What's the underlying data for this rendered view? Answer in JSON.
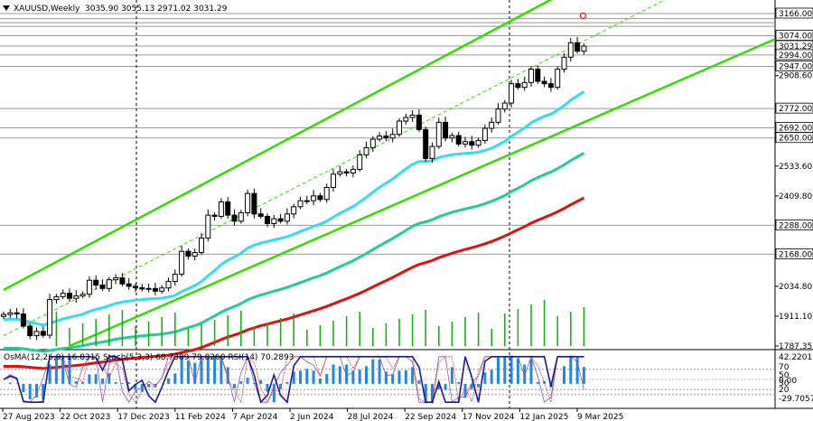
{
  "header": {
    "symbol": "XAUUSD,Weekly",
    "ohlc": "3035.90 3055.13 2971.02 3031.29"
  },
  "indicator": {
    "label": "OsMA(12,26,9) 16.8315  Stoch(5,3,3) 68.7389 79.8260  RSI(14) 70.2893",
    "axis_labels": [
      "42.2201",
      "70",
      "50",
      "30",
      "20",
      "0.00",
      "-29.7057"
    ]
  },
  "colors": {
    "bull": "#ffffff",
    "bear": "#000000",
    "channel": "#33dd00",
    "ema_fast": "#33ddee",
    "ema_mid": "#22cc99",
    "ema_slow": "#dd1111",
    "volume": "#11aa11",
    "grid": "#808080",
    "level": "#999999",
    "osma": "#2288dd",
    "rsi": "#1a1a8c",
    "stoch_main": "#8855bb",
    "stoch_signal": "#dd4444"
  },
  "chart_data": {
    "type": "candlestick",
    "symbol": "XAUUSD",
    "timeframe": "Weekly",
    "ylim": [
      1787.35,
      3166.0
    ],
    "price_ticks": [
      "3166.00",
      "3074.00",
      "3031.29",
      "2994.00",
      "2947.00",
      "2908.60",
      "2772.00",
      "2692.00",
      "2650.00",
      "2533.60",
      "2409.80",
      "2288.00",
      "2168.00",
      "2034.80",
      "1911.10",
      "1787.35"
    ],
    "levels": [
      3166.0,
      3145.0,
      3128.0,
      3113.0,
      3074.0,
      3031.29,
      2994.0,
      2947.0,
      2772.0,
      2692.0,
      2650.0,
      2288.0,
      2168.0
    ],
    "time_labels": [
      "27 Aug 2023",
      "22 Oct 2023",
      "17 Dec 2023",
      "11 Feb 2024",
      "7 Apr 2024",
      "2 Jun 2024",
      "28 Jul 2024",
      "22 Sep 2024",
      "17 Nov 2024",
      "12 Jan 2025",
      "9 Mar 2025"
    ],
    "close": [
      1918,
      1925,
      1920,
      1870,
      1830,
      1848,
      1832,
      1980,
      1992,
      2006,
      1985,
      1995,
      2002,
      2060,
      2040,
      2026,
      2062,
      2070,
      2045,
      2035,
      2029,
      2024,
      2026,
      2015,
      2028,
      2055,
      2085,
      2180,
      2160,
      2175,
      2235,
      2330,
      2325,
      2385,
      2330,
      2305,
      2340,
      2420,
      2335,
      2325,
      2295,
      2315,
      2305,
      2335,
      2365,
      2390,
      2390,
      2410,
      2395,
      2445,
      2500,
      2510,
      2505,
      2520,
      2580,
      2610,
      2645,
      2658,
      2650,
      2665,
      2720,
      2735,
      2745,
      2685,
      2565,
      2615,
      2715,
      2650,
      2660,
      2625,
      2635,
      2620,
      2640,
      2690,
      2715,
      2770,
      2795,
      2875,
      2860,
      2880,
      2935,
      2885,
      2875,
      2860,
      2935,
      2985,
      3045,
      3010,
      3031
    ]
  }
}
